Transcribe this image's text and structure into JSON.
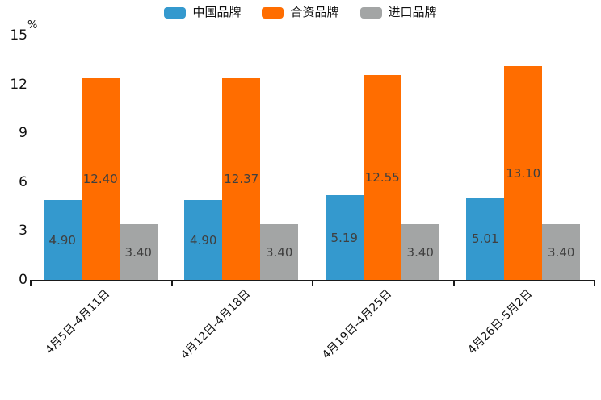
{
  "chart_data": {
    "type": "bar",
    "title": "",
    "unit_label": "%",
    "categories": [
      "4月5日-4月11日",
      "4月12日-4月18日",
      "4月19日-4月25日",
      "4月26日-5月2日"
    ],
    "series": [
      {
        "name": "中国品牌",
        "color": "#3499CE",
        "values": [
          4.9,
          4.9,
          5.19,
          5.01
        ]
      },
      {
        "name": "合资品牌",
        "color": "#FF6D00",
        "values": [
          12.4,
          12.37,
          12.55,
          13.1
        ]
      },
      {
        "name": "进口品牌",
        "color": "#A3A5A5",
        "values": [
          3.4,
          3.4,
          3.4,
          3.4
        ]
      }
    ],
    "ylim": [
      0,
      15
    ],
    "yticks": [
      0,
      3,
      6,
      9,
      12,
      15
    ],
    "value_label_decimals": 2,
    "grid": false,
    "legend_position": "top",
    "axis_color": "#1a1a1a",
    "value_label_color": "#3f3f3f"
  }
}
